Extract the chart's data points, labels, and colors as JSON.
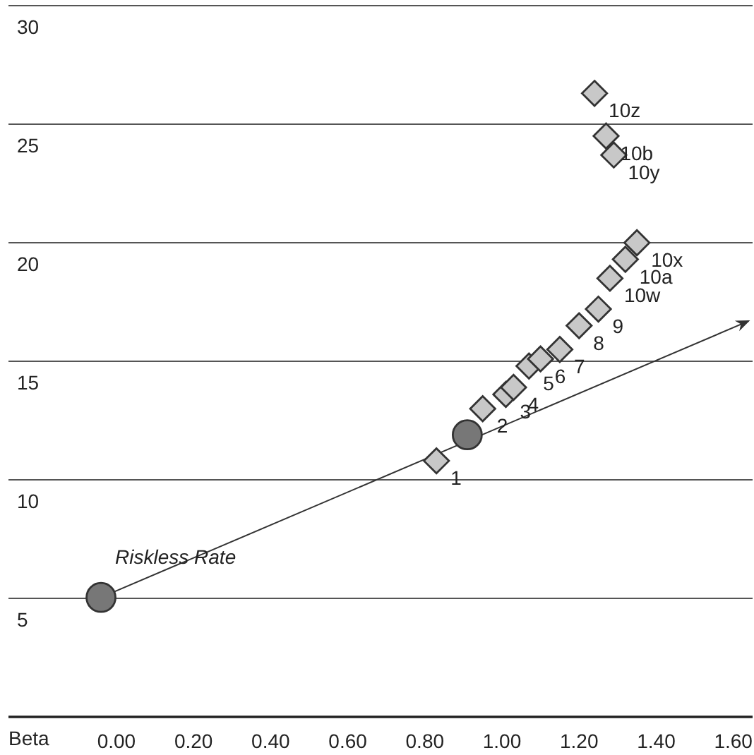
{
  "chart_data": {
    "type": "scatter",
    "xlabel": "Beta",
    "xlim": [
      -0.28,
      1.65
    ],
    "ylim": [
      0,
      30
    ],
    "xticks": [
      {
        "value": 0,
        "label": "0.00"
      },
      {
        "value": 0.2,
        "label": "0.20"
      },
      {
        "value": 0.4,
        "label": "0.40"
      },
      {
        "value": 0.6,
        "label": "0.60"
      },
      {
        "value": 0.8,
        "label": "0.80"
      },
      {
        "value": 1,
        "label": "1.00"
      },
      {
        "value": 1.2,
        "label": "1.20"
      },
      {
        "value": 1.4,
        "label": "1.40"
      },
      {
        "value": 1.6,
        "label": "1.60"
      }
    ],
    "yticks": [
      {
        "value": 0,
        "label": null
      },
      5,
      10,
      15,
      20,
      25,
      30
    ],
    "grid": "y",
    "series": [
      {
        "type": "line",
        "color": "#333333",
        "marker": "none",
        "line_style": "solid",
        "x": [
          -0.04,
          1.64
        ],
        "values": [
          5.04,
          16.7
        ]
      },
      {
        "color": "#c8c8c8",
        "marker": "diamond",
        "x": [
          0.83,
          0.95,
          1.01,
          1.03,
          1.07,
          1.1,
          1.15,
          1.2,
          1.25,
          1.28,
          1.32,
          1.35,
          1.29,
          1.27,
          1.24
        ],
        "values": [
          10.8,
          13.0,
          13.6,
          13.9,
          14.8,
          15.1,
          15.5,
          16.5,
          17.2,
          18.5,
          19.3,
          20.0,
          23.7,
          24.5,
          26.3
        ]
      },
      {
        "color": "#777777",
        "marker": "circle",
        "x": [
          -0.04,
          0.91
        ],
        "values": [
          5.04,
          11.9
        ]
      }
    ],
    "annotations": [
      {
        "text": "Riskless Rate",
        "x": -0.04,
        "y": 5.04
      },
      {
        "text": "1",
        "x": 0.83,
        "y": 10.8
      },
      {
        "text": "2",
        "x": 0.95,
        "y": 13.0
      },
      {
        "text": "3",
        "x": 1.01,
        "y": 13.6
      },
      {
        "text": "4",
        "x": 1.03,
        "y": 13.9
      },
      {
        "text": "5",
        "x": 1.07,
        "y": 14.8
      },
      {
        "text": "6",
        "x": 1.1,
        "y": 15.1
      },
      {
        "text": "7",
        "x": 1.15,
        "y": 15.5
      },
      {
        "text": "8",
        "x": 1.2,
        "y": 16.5
      },
      {
        "text": "9",
        "x": 1.25,
        "y": 17.2
      },
      {
        "text": "10w",
        "x": 1.28,
        "y": 18.5
      },
      {
        "text": "10a",
        "x": 1.32,
        "y": 19.3
      },
      {
        "text": "10x",
        "x": 1.35,
        "y": 20.0
      },
      {
        "text": "10y",
        "x": 1.29,
        "y": 23.7
      },
      {
        "text": "10b",
        "x": 1.27,
        "y": 24.5
      },
      {
        "text": "10z",
        "x": 1.24,
        "y": 26.3
      }
    ]
  }
}
